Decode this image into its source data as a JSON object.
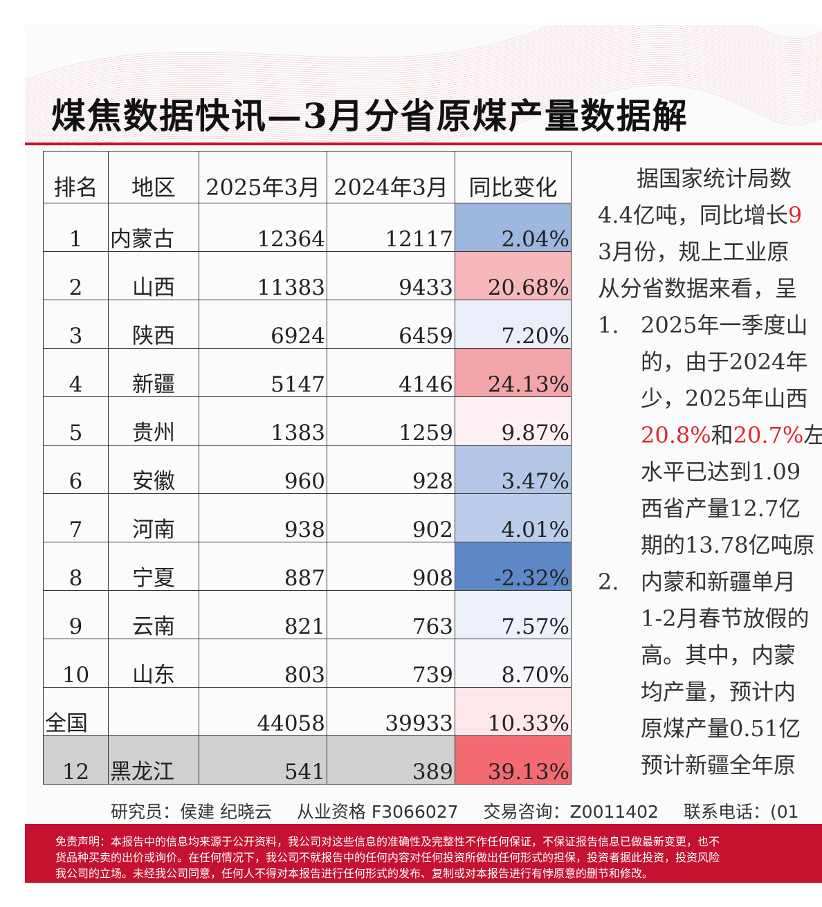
{
  "title": "煤焦数据快讯—3月分省原煤产量数据解",
  "colors": {
    "accent_red": "#c8102e",
    "disclaimer_bg": "#c41230"
  },
  "table": {
    "headers": [
      "排名",
      "地区",
      "2025年3月",
      "2024年3月",
      "同比变化"
    ],
    "rows": [
      {
        "rank": "1",
        "region": "内蒙古",
        "y2025": "12364",
        "y2024": "12117",
        "change": "2.04%",
        "bg": "#9db7de"
      },
      {
        "rank": "2",
        "region": "山西",
        "y2025": "11383",
        "y2024": "9433",
        "change": "20.68%",
        "bg": "#f7b8bc"
      },
      {
        "rank": "3",
        "region": "陕西",
        "y2025": "6924",
        "y2024": "6459",
        "change": "7.20%",
        "bg": "#e9eef8"
      },
      {
        "rank": "4",
        "region": "新疆",
        "y2025": "5147",
        "y2024": "4146",
        "change": "24.13%",
        "bg": "#f4a5aa"
      },
      {
        "rank": "5",
        "region": "贵州",
        "y2025": "1383",
        "y2024": "1259",
        "change": "9.87%",
        "bg": "#fcf0f2"
      },
      {
        "rank": "6",
        "region": "安徽",
        "y2025": "960",
        "y2024": "928",
        "change": "3.47%",
        "bg": "#b4c7e6"
      },
      {
        "rank": "7",
        "region": "河南",
        "y2025": "938",
        "y2024": "902",
        "change": "4.01%",
        "bg": "#bccde9"
      },
      {
        "rank": "8",
        "region": "宁夏",
        "y2025": "887",
        "y2024": "908",
        "change": "-2.32%",
        "bg": "#5f88c8"
      },
      {
        "rank": "9",
        "region": "云南",
        "y2025": "821",
        "y2024": "763",
        "change": "7.57%",
        "bg": "#edf1f9"
      },
      {
        "rank": "10",
        "region": "山东",
        "y2025": "803",
        "y2024": "739",
        "change": "8.70%",
        "bg": "#f8f6fa"
      },
      {
        "rank": "全国",
        "region": "",
        "y2025": "44058",
        "y2024": "39933",
        "change": "10.33%",
        "bg": "#fde7ea"
      },
      {
        "rank": "12",
        "region": "黑龙江",
        "y2025": "541",
        "y2024": "389",
        "change": "39.13%",
        "bg": "#f26b73"
      }
    ]
  },
  "body_text": {
    "p1_line1": "据国家统计局数",
    "p1_line2_a": "4.4亿吨，同比增长",
    "p1_line2_b": "9",
    "p1_line3": "3月份，规上工业原",
    "p1_line4": "从分省数据来看，呈",
    "item1_num": "1.",
    "item1_line1": "2025年一季度山",
    "item1_line2": "的，由于2024年",
    "item1_line3": "少，2025年山西",
    "item1_line4_a": "20.8%",
    "item1_line4_b": "和",
    "item1_line4_c": "20.7%",
    "item1_line4_d": "左",
    "item1_line5": "水平已达到1.09",
    "item1_line6": "西省产量12.7亿",
    "item1_line7": "期的13.78亿吨原",
    "item2_num": "2.",
    "item2_line1": "内蒙和新疆单月",
    "item2_line2": "1-2月春节放假的",
    "item2_line3": "高。其中，内蒙",
    "item2_line4": "均产量，预计内",
    "item2_line5": "原煤产量0.51亿",
    "item2_line6": "预计新疆全年原"
  },
  "footer": {
    "researcher": "研究员：侯建 纪晓云",
    "qualification": "从业资格 F3066027",
    "trade_consult": "交易咨询：Z0011402",
    "phone": "联系电话：(01"
  },
  "disclaimer": {
    "line1": "免责声明：本报告中的信息均来源于公开资料，我公司对这些信息的准确性及完整性不作任何保证，不保证报告信息已做最新变更，也不",
    "line2": "货品种买卖的出价或询价。在任何情况下，我公司不就报告中的任何内容对任何投资所做出任何形式的担保，投资者据此投资，投资风险",
    "line3": "我公司的立场。未经我公司同意，任何人不得对本报告进行任何形式的发布、复制或对本报告进行有悖原意的删节和修改。"
  }
}
